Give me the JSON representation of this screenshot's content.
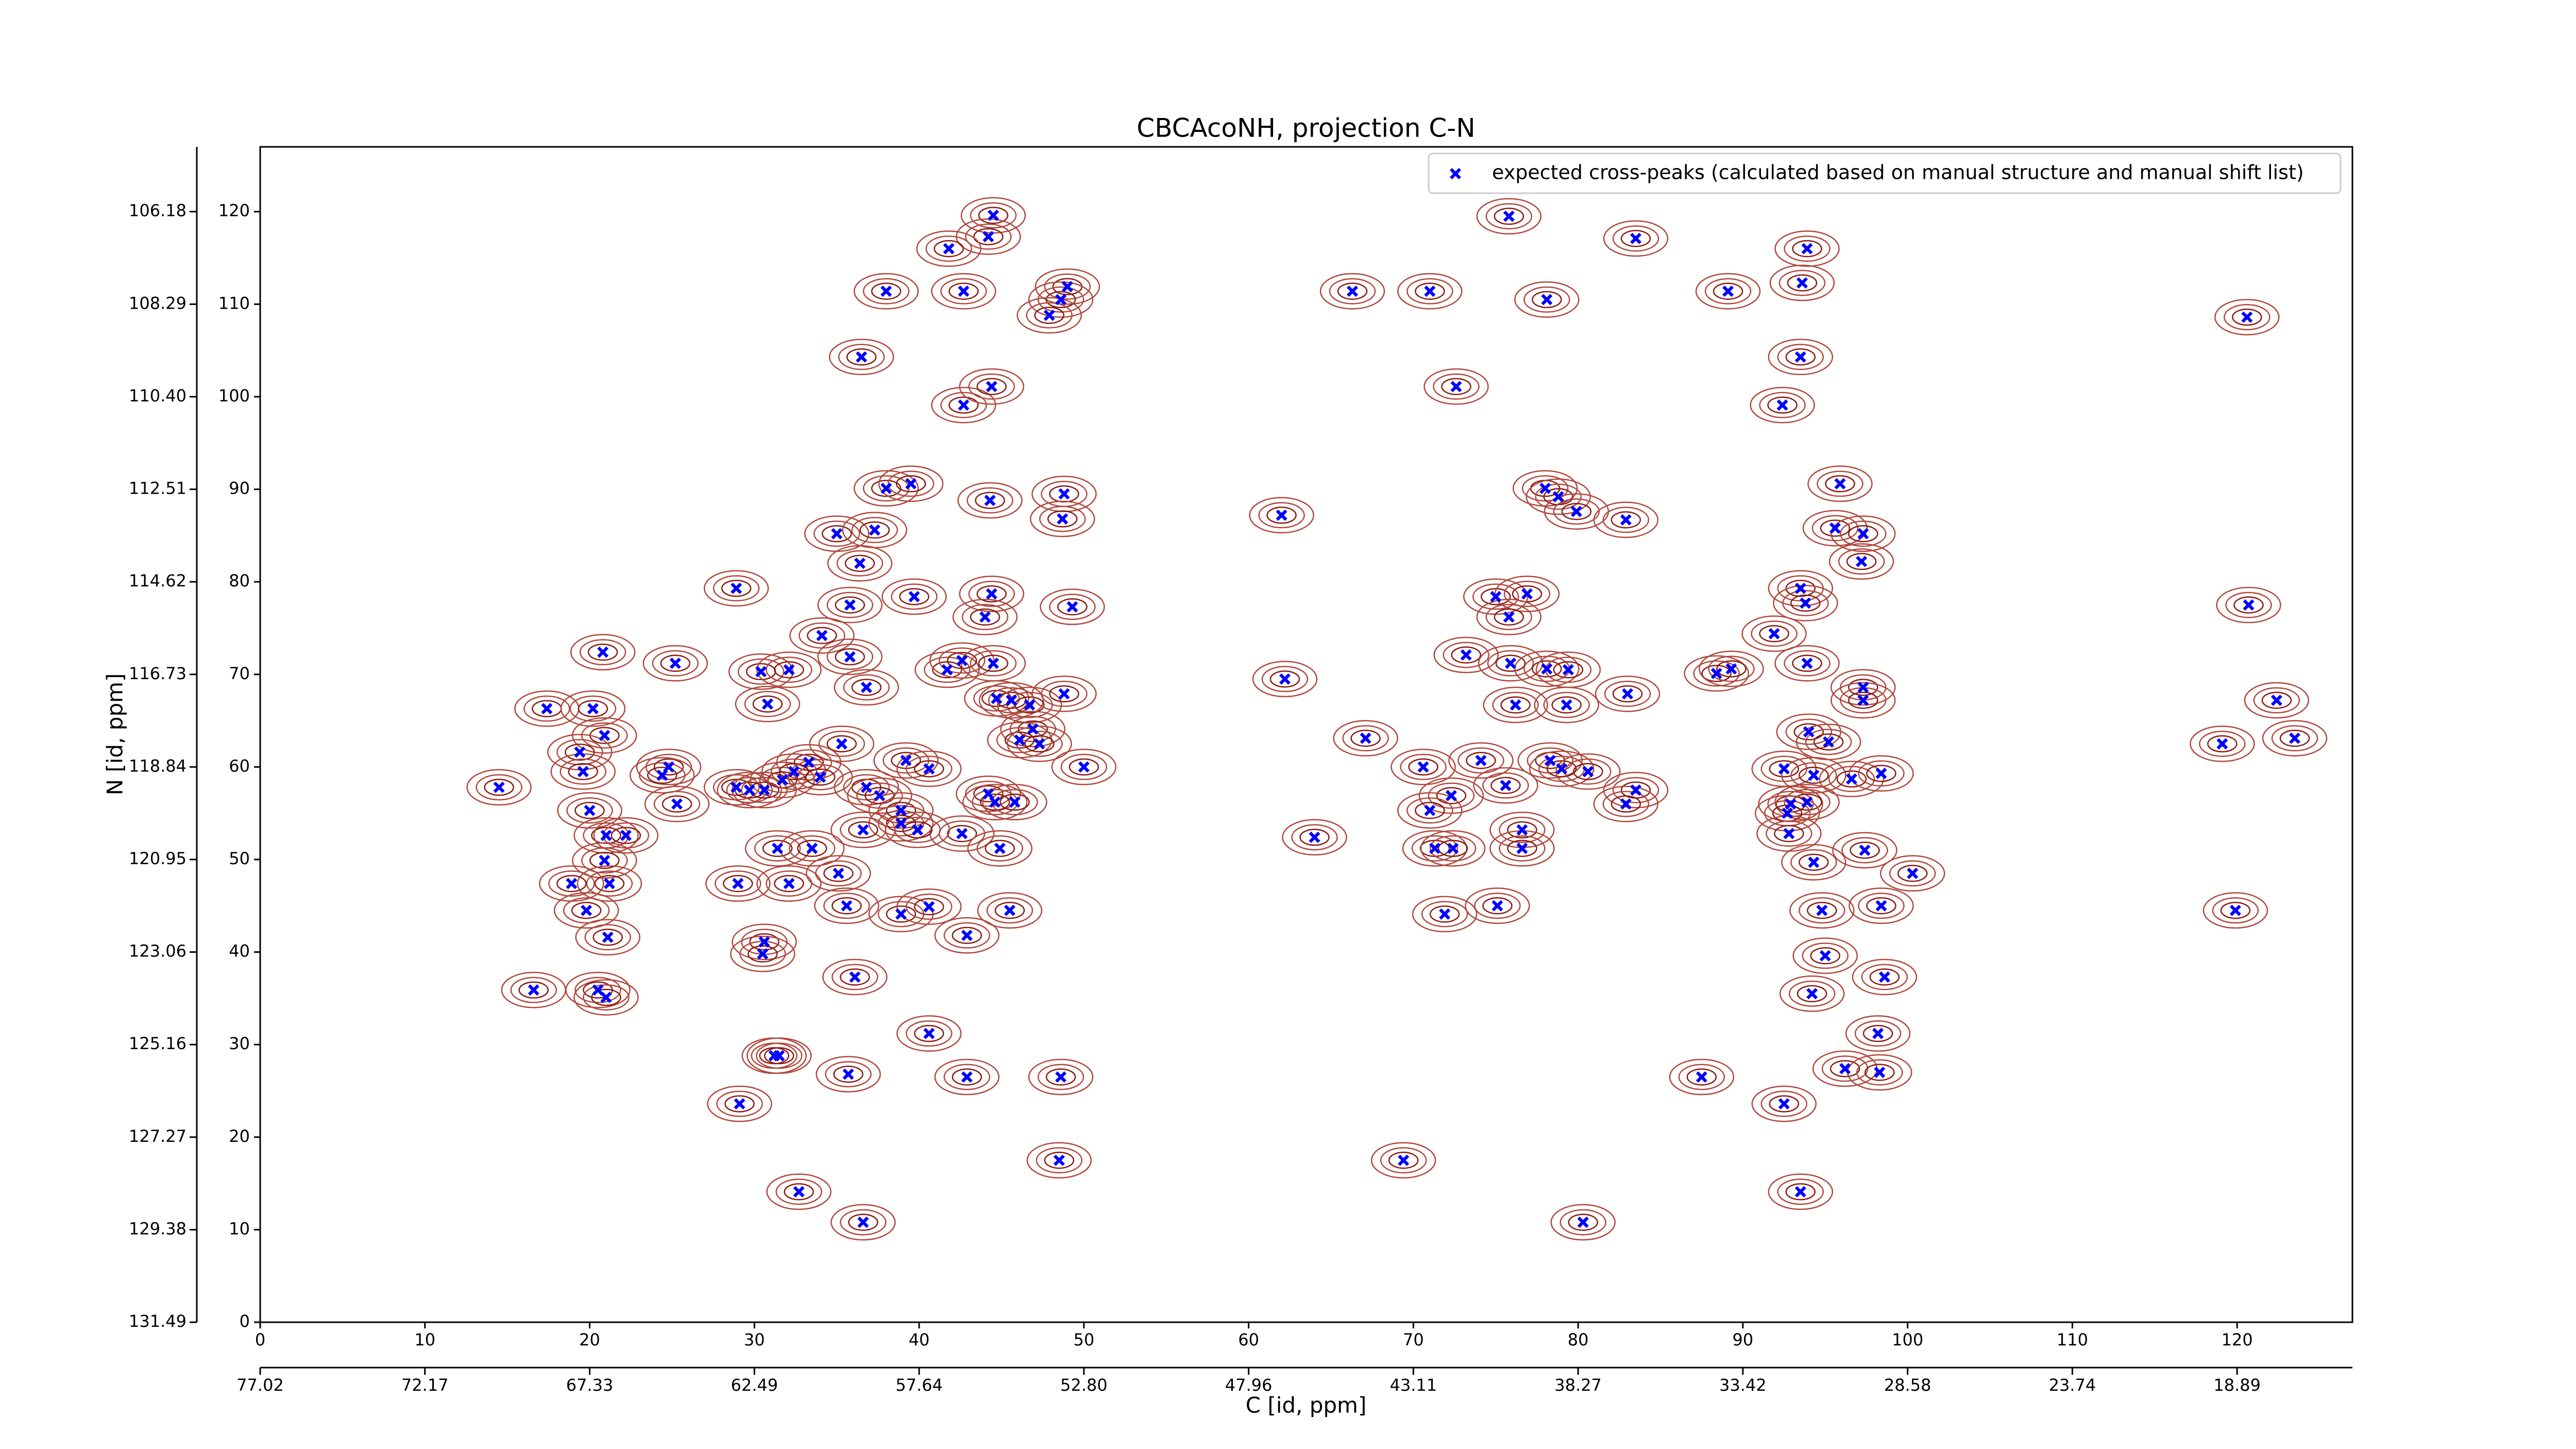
{
  "chart_data": {
    "type": "scatter",
    "title": "CBCAcoNH, projection C-N",
    "x_label": "C [id, ppm]",
    "y_label": "N [id, ppm]",
    "legend": "upper right",
    "xlim": [
      0,
      127
    ],
    "ylim": [
      0,
      127
    ],
    "xticks": [
      0,
      10,
      20,
      30,
      40,
      50,
      60,
      70,
      80,
      90,
      100,
      110,
      120
    ],
    "yticks": [
      0,
      10,
      20,
      30,
      40,
      50,
      60,
      70,
      80,
      90,
      100,
      110,
      120
    ],
    "x2ticks": [
      {
        "value": 0,
        "label": "77.02"
      },
      {
        "value": 10,
        "label": "72.17"
      },
      {
        "value": 20,
        "label": "67.33"
      },
      {
        "value": 30,
        "label": "62.49"
      },
      {
        "value": 40,
        "label": "57.64"
      },
      {
        "value": 50,
        "label": "52.80"
      },
      {
        "value": 60,
        "label": "47.96"
      },
      {
        "value": 70,
        "label": "43.11"
      },
      {
        "value": 80,
        "label": "38.27"
      },
      {
        "value": 90,
        "label": "33.42"
      },
      {
        "value": 100,
        "label": "28.58"
      },
      {
        "value": 110,
        "label": "23.74"
      },
      {
        "value": 120,
        "label": "18.89"
      }
    ],
    "y2ticks": [
      {
        "value": 0,
        "label": "131.49"
      },
      {
        "value": 10,
        "label": "129.38"
      },
      {
        "value": 20,
        "label": "127.27"
      },
      {
        "value": 30,
        "label": "125.16"
      },
      {
        "value": 40,
        "label": "123.06"
      },
      {
        "value": 50,
        "label": "120.95"
      },
      {
        "value": 60,
        "label": "118.84"
      },
      {
        "value": 70,
        "label": "116.73"
      },
      {
        "value": 80,
        "label": "114.62"
      },
      {
        "value": 90,
        "label": "112.51"
      },
      {
        "value": 100,
        "label": "110.40"
      },
      {
        "value": 110,
        "label": "108.29"
      },
      {
        "value": 120,
        "label": "106.18"
      }
    ],
    "series": [
      {
        "name": "expected cross-peaks (calculated based on manual structure and manual shift list)",
        "color": "#0000ff",
        "x": [
          44.5,
          44.2,
          41.8,
          38.0,
          42.7,
          49.0,
          48.6,
          47.9,
          36.5,
          42.7,
          44.4,
          38.0,
          39.5,
          44.3,
          48.8,
          48.7,
          35.0,
          37.3,
          36.4,
          35.8,
          39.7,
          44.4,
          44.0,
          49.3,
          28.9,
          34.1,
          20.8,
          25.2,
          30.4,
          32.1,
          35.8,
          36.8,
          41.7,
          42.6,
          44.5,
          44.7,
          45.6,
          46.7,
          48.8,
          30.8,
          17.4,
          20.2,
          20.9,
          19.4,
          19.6,
          24.8,
          24.4,
          46.9,
          46.1,
          47.3,
          35.3,
          33.3,
          39.2,
          40.6,
          50.0,
          28.9,
          29.7,
          30.6,
          31.7,
          32.4,
          34.0,
          36.8,
          37.6,
          44.2,
          44.6,
          45.8,
          20.0,
          25.3,
          38.9,
          38.9,
          36.6,
          42.6,
          39.9,
          21.0,
          22.2,
          31.4,
          33.5,
          44.9,
          20.9,
          35.1,
          29.0,
          32.1,
          21.2,
          18.9,
          19.8,
          35.6,
          38.9,
          40.6,
          45.5,
          21.1,
          30.6,
          30.5,
          42.9,
          36.1,
          16.6,
          20.5,
          21.0,
          40.6,
          31.2,
          31.5,
          35.7,
          42.9,
          48.6,
          29.1,
          48.5,
          32.7,
          36.6,
          14.5,
          75.8,
          83.5,
          93.9,
          66.3,
          71.0,
          78.1,
          89.1,
          93.6,
          93.5,
          120.6,
          72.6,
          92.4,
          78.0,
          78.8,
          79.9,
          62.0,
          82.9,
          95.9,
          95.6,
          97.3,
          97.2,
          93.5,
          93.8,
          75.0,
          76.9,
          120.7,
          75.8,
          91.9,
          73.2,
          75.9,
          78.1,
          79.4,
          88.4,
          89.3,
          93.9,
          62.2,
          83.0,
          97.3,
          97.3,
          122.4,
          76.2,
          79.3,
          67.1,
          94.0,
          95.2,
          119.1,
          123.5,
          70.6,
          74.1,
          78.3,
          79.0,
          80.6,
          92.5,
          94.3,
          96.6,
          98.4,
          75.6,
          83.5,
          72.3,
          71.0,
          92.9,
          93.9,
          82.9,
          92.7,
          64.0,
          76.6,
          92.8,
          71.3,
          72.4,
          76.6,
          97.4,
          94.3,
          100.3,
          71.9,
          75.1,
          94.8,
          98.4,
          119.9,
          95.0,
          98.6,
          94.2,
          98.2,
          87.5,
          96.2,
          98.3,
          92.5,
          69.4,
          93.5,
          80.3
        ],
        "values": [
          119.6,
          117.3,
          116.0,
          111.4,
          111.4,
          111.9,
          110.5,
          108.8,
          104.3,
          99.1,
          101.1,
          90.1,
          90.6,
          88.8,
          89.5,
          86.8,
          85.2,
          85.6,
          82.0,
          77.5,
          78.4,
          78.7,
          76.2,
          77.3,
          79.3,
          74.2,
          72.4,
          71.2,
          70.3,
          70.5,
          71.9,
          68.6,
          70.5,
          71.5,
          71.2,
          67.4,
          67.2,
          66.7,
          67.9,
          66.8,
          66.3,
          66.3,
          63.4,
          61.6,
          59.5,
          60.0,
          59.1,
          64.1,
          62.9,
          62.5,
          62.5,
          60.5,
          60.7,
          59.8,
          60.0,
          57.8,
          57.5,
          57.5,
          58.6,
          59.5,
          58.9,
          57.8,
          56.9,
          57.1,
          56.2,
          56.2,
          55.3,
          56.0,
          55.3,
          53.9,
          53.2,
          52.8,
          53.2,
          52.6,
          52.6,
          51.2,
          51.2,
          51.2,
          49.9,
          48.5,
          47.4,
          47.4,
          47.4,
          47.4,
          44.5,
          45.0,
          44.1,
          44.9,
          44.5,
          41.6,
          41.1,
          39.8,
          41.8,
          37.3,
          35.9,
          35.9,
          35.1,
          31.2,
          28.8,
          28.8,
          26.8,
          26.5,
          26.5,
          23.6,
          17.5,
          14.1,
          10.8,
          57.8,
          119.5,
          117.1,
          116.0,
          111.4,
          111.4,
          110.5,
          111.4,
          112.3,
          104.3,
          108.6,
          101.1,
          99.1,
          90.1,
          89.2,
          87.6,
          87.2,
          86.7,
          90.6,
          85.8,
          85.2,
          82.2,
          79.3,
          77.7,
          78.4,
          78.7,
          77.5,
          76.2,
          74.4,
          72.1,
          71.2,
          70.6,
          70.5,
          70.1,
          70.6,
          71.2,
          69.5,
          67.9,
          68.6,
          67.2,
          67.2,
          66.7,
          66.7,
          63.1,
          63.8,
          62.7,
          62.5,
          63.1,
          60.0,
          60.7,
          60.7,
          59.8,
          59.5,
          59.8,
          59.1,
          58.7,
          59.3,
          58.0,
          57.5,
          56.9,
          55.3,
          56.0,
          56.2,
          56.0,
          55.0,
          52.4,
          53.2,
          52.8,
          51.2,
          51.2,
          51.2,
          51.0,
          49.7,
          48.5,
          44.1,
          45.0,
          44.5,
          45.0,
          44.5,
          39.6,
          37.3,
          35.5,
          31.2,
          26.5,
          27.4,
          27.0,
          23.6,
          17.5,
          14.1,
          10.8
        ]
      }
    ]
  }
}
